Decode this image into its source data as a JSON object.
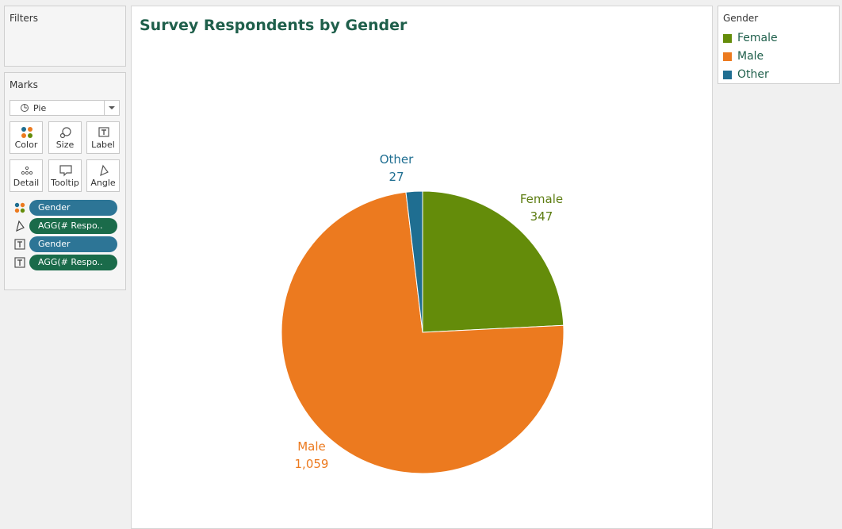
{
  "filters": {
    "title": "Filters"
  },
  "marks": {
    "title": "Marks",
    "mark_type": "Pie",
    "cards": [
      {
        "label": "Color",
        "icon": "color-dots-icon"
      },
      {
        "label": "Size",
        "icon": "size-icon"
      },
      {
        "label": "Label",
        "icon": "label-icon"
      },
      {
        "label": "Detail",
        "icon": "detail-dots-icon"
      },
      {
        "label": "Tooltip",
        "icon": "tooltip-icon"
      },
      {
        "label": "Angle",
        "icon": "angle-icon"
      }
    ],
    "pills": [
      {
        "label": "Gender",
        "kind": "dimension",
        "icon": "color-dots-icon"
      },
      {
        "label": "AGG(# Respo..",
        "kind": "measure",
        "icon": "angle-icon"
      },
      {
        "label": "Gender",
        "kind": "dimension",
        "icon": "label-icon"
      },
      {
        "label": "AGG(# Respo..",
        "kind": "measure",
        "icon": "label-icon"
      }
    ]
  },
  "legend": {
    "title": "Gender",
    "items": [
      {
        "label": "Female",
        "color": "#648c0a"
      },
      {
        "label": "Male",
        "color": "#ec7a1f"
      },
      {
        "label": "Other",
        "color": "#1f6e91"
      }
    ]
  },
  "chart_data": {
    "type": "pie",
    "title": "Survey Respondents by Gender",
    "categories": [
      "Female",
      "Male",
      "Other"
    ],
    "values": [
      347,
      1059,
      27
    ],
    "value_labels": [
      "347",
      "1,059",
      "27"
    ],
    "colors": [
      "#648c0a",
      "#ec7a1f",
      "#1f6e91"
    ],
    "legend": "top-right",
    "start": "12 o'clock, clockwise"
  }
}
